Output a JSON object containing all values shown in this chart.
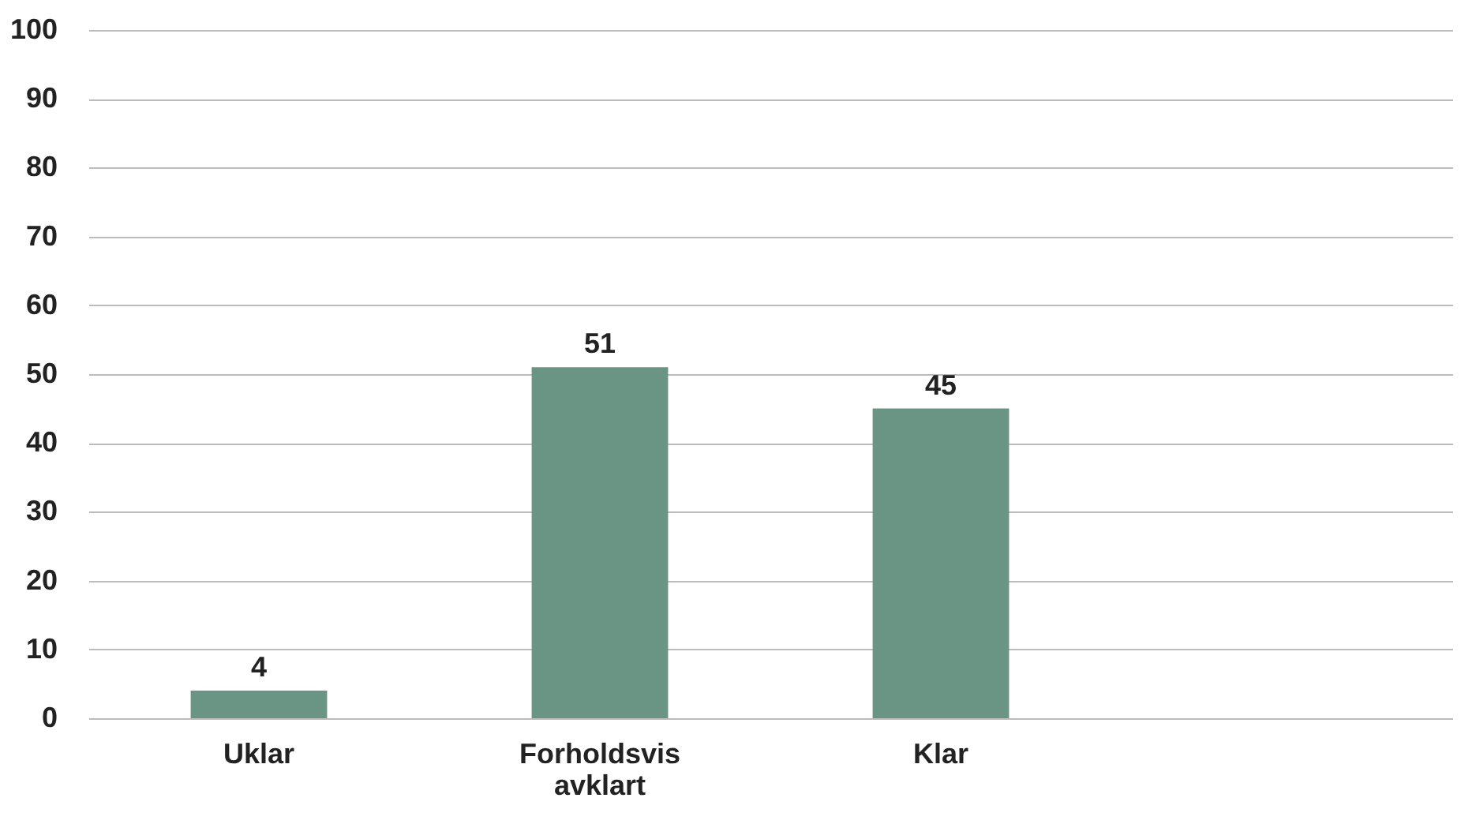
{
  "chart_data": {
    "type": "bar",
    "categories": [
      "Uklar",
      "Forholdsvis avklart",
      "Klar",
      null
    ],
    "values": [
      4,
      51,
      45,
      null
    ],
    "color": "#6a9483",
    "ylim": [
      0,
      100
    ],
    "yticks": [
      0,
      10,
      20,
      30,
      40,
      50,
      60,
      70,
      80,
      90,
      100
    ],
    "grid": "y",
    "data_labels": true
  }
}
